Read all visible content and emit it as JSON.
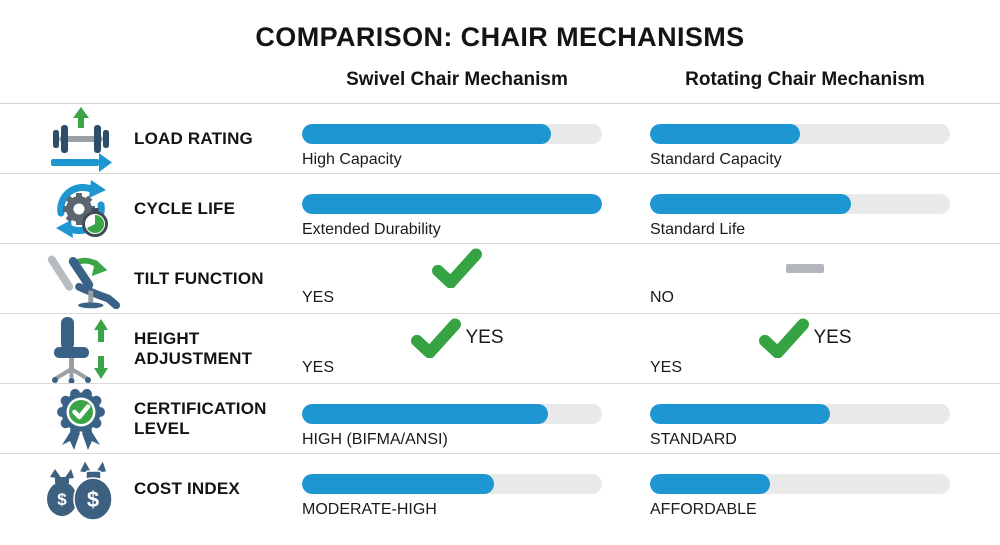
{
  "title": "COMPARISON: CHAIR MECHANISMS",
  "colors": {
    "bar_fill": "#1e96d2",
    "bar_track": "#e9e9e9",
    "check_green": "#36a343",
    "dash_gray": "#b3b7bb",
    "icon_navy": "#3a6186",
    "icon_navy_dark": "#2d4d6d",
    "icon_gray": "#9aa0a6",
    "arrow_green": "#3aa546",
    "arrow_blue": "#1e96d2"
  },
  "row_icons": [
    "dumbbell-load-icon",
    "cycle-gear-stopwatch-icon",
    "tilt-chair-icon",
    "height-adjustment-chair-icon",
    "certification-badge-icon",
    "money-bags-icon"
  ],
  "chart_data": {
    "type": "table",
    "title": "COMPARISON: CHAIR MECHANISMS",
    "columns": [
      "Swivel Chair Mechanism",
      "Rotating Chair Mechanism"
    ],
    "categories": [
      "LOAD RATING",
      "CYCLE LIFE",
      "TILT FUNCTION",
      "HEIGHT ADJUSTMENT",
      "CERTIFICATION LEVEL",
      "COST INDEX"
    ],
    "legend_position": "top",
    "series": [
      {
        "name": "Swivel Chair Mechanism",
        "values": [
          {
            "kind": "bar",
            "percent": 83,
            "label": "High Capacity"
          },
          {
            "kind": "bar",
            "percent": 100,
            "label": "Extended Durability"
          },
          {
            "kind": "check",
            "label": "YES"
          },
          {
            "kind": "check",
            "label": "YES",
            "inline_label": "YES"
          },
          {
            "kind": "bar",
            "percent": 82,
            "label": "HIGH (BIFMA/ANSI)"
          },
          {
            "kind": "bar",
            "percent": 64,
            "label": "MODERATE-HIGH"
          }
        ]
      },
      {
        "name": "Rotating Chair Mechanism",
        "values": [
          {
            "kind": "bar",
            "percent": 50,
            "label": "Standard Capacity"
          },
          {
            "kind": "bar",
            "percent": 67,
            "label": "Standard Life"
          },
          {
            "kind": "dash",
            "label": "NO"
          },
          {
            "kind": "check",
            "label": "YES",
            "inline_label": "YES"
          },
          {
            "kind": "bar",
            "percent": 60,
            "label": "STANDARD"
          },
          {
            "kind": "bar",
            "percent": 40,
            "label": "AFFORDABLE"
          }
        ]
      }
    ]
  }
}
